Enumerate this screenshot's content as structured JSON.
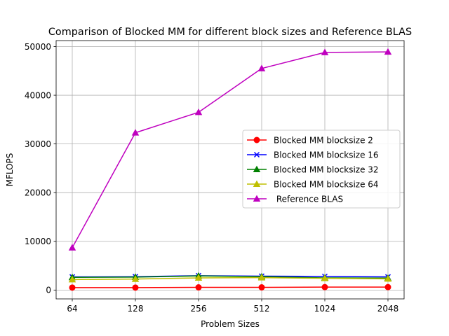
{
  "chart_data": {
    "type": "line",
    "title": "Comparison of Blocked MM for different block sizes and Reference BLAS",
    "xlabel": "Problem Sizes",
    "ylabel": "MFLOPS",
    "categories": [
      "64",
      "128",
      "256",
      "512",
      "1024",
      "2048"
    ],
    "ylim": [
      -1820,
      51220
    ],
    "yticks": [
      0,
      10000,
      20000,
      30000,
      40000,
      50000
    ],
    "grid": true,
    "legend_position": "center-right",
    "series": [
      {
        "name": "Blocked MM blocksize 2",
        "color": "#ff0000",
        "marker": "circle",
        "values": [
          500,
          500,
          550,
          550,
          600,
          600
        ]
      },
      {
        "name": "Blocked MM blocksize 16",
        "color": "#0000ff",
        "marker": "x",
        "values": [
          2700,
          2750,
          2950,
          2850,
          2800,
          2700
        ]
      },
      {
        "name": "Blocked MM blocksize 32",
        "color": "#008000",
        "marker": "triangle",
        "values": [
          2600,
          2650,
          2900,
          2750,
          2500,
          2450
        ]
      },
      {
        "name": "Blocked MM blocksize 64",
        "color": "#bfbf00",
        "marker": "triangle",
        "values": [
          2150,
          2250,
          2500,
          2550,
          2400,
          2300
        ]
      },
      {
        "name": " Reference BLAS",
        "color": "#bf00bf",
        "marker": "triangle",
        "values": [
          8700,
          32300,
          36500,
          45500,
          48800,
          48900
        ]
      }
    ]
  }
}
